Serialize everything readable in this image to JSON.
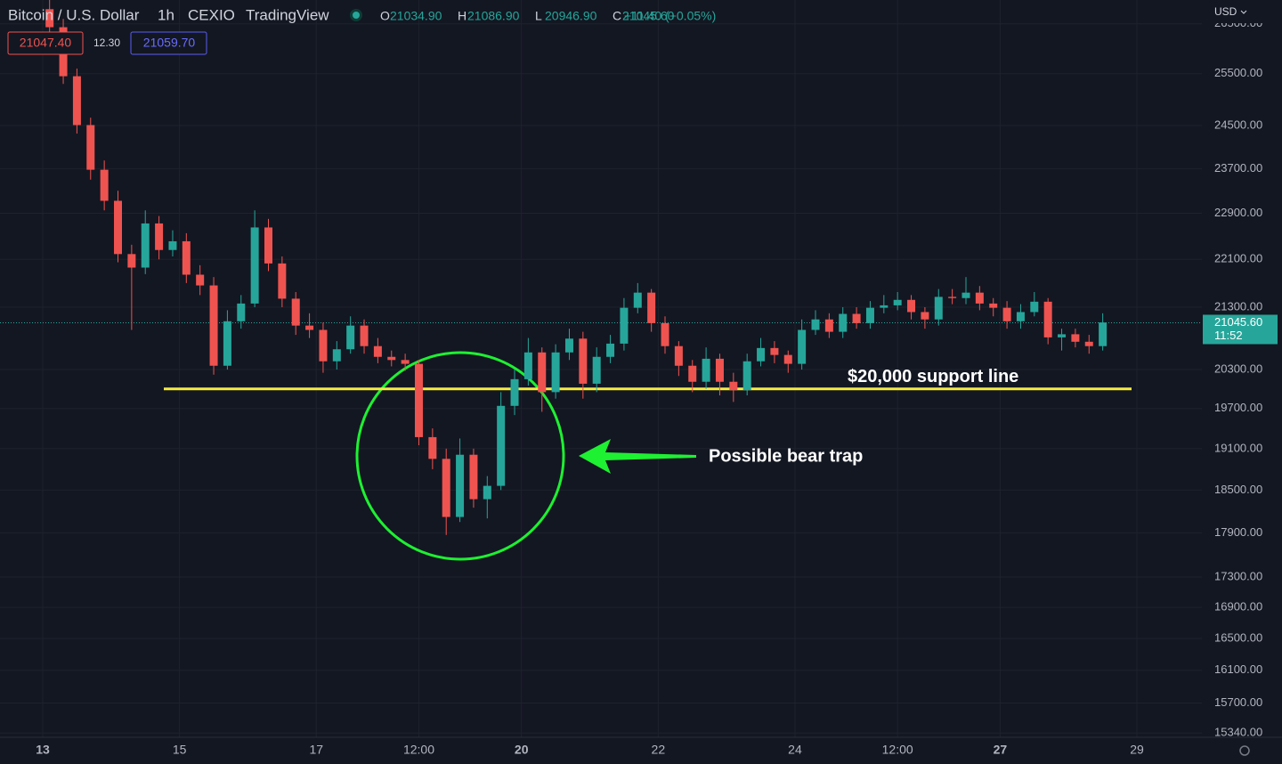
{
  "header": {
    "symbol": "Bitcoin / U.S. Dollar",
    "interval": "1h",
    "exchange": "CEXIO",
    "source": "TradingView",
    "ohlc": [
      {
        "label": "O",
        "value": "21034.90"
      },
      {
        "label": "H",
        "value": "21086.90"
      },
      {
        "label": "L",
        "value": "20946.90"
      },
      {
        "label": "C",
        "value": "21045.60"
      }
    ],
    "change": "+11.40 (+0.05%)",
    "bid": "21047.40",
    "spread": "12.30",
    "ask": "21059.70"
  },
  "currency": "USD",
  "chart_data": {
    "type": "candlestick",
    "x": [
      13.1,
      13.3,
      13.5,
      13.7,
      13.9,
      14.1,
      14.3,
      14.5,
      14.7,
      14.9,
      15.1,
      15.3,
      15.5,
      15.7,
      15.9,
      16.1,
      16.3,
      16.5,
      16.7,
      16.9,
      17.1,
      17.3,
      17.5,
      17.7,
      17.9,
      18.1,
      18.3,
      18.5,
      18.7,
      18.9,
      19.1,
      19.3,
      19.5,
      19.7,
      19.9,
      20.1,
      20.3,
      20.5,
      20.7,
      20.9,
      21.1,
      21.3,
      21.5,
      21.7,
      21.9,
      22.1,
      22.3,
      22.5,
      22.7,
      22.9,
      23.1,
      23.3,
      23.5,
      23.7,
      23.9,
      24.1,
      24.3,
      24.5,
      24.7,
      24.9,
      25.1,
      25.3,
      25.5,
      25.7,
      25.9,
      26.1,
      26.3,
      26.5,
      26.7,
      26.9,
      27.1,
      27.3,
      27.5,
      27.7,
      27.9,
      28.1,
      28.3,
      28.5
    ],
    "open": [
      26800,
      26430,
      25450,
      24510,
      23680,
      23120,
      22190,
      21960,
      22720,
      22260,
      22410,
      21840,
      21660,
      20360,
      21070,
      21360,
      22650,
      22030,
      21440,
      21000,
      20930,
      20430,
      20620,
      21000,
      20670,
      20500,
      20450,
      20390,
      19270,
      18950,
      18120,
      19010,
      18370,
      18560,
      19740,
      20150,
      20570,
      19950,
      20570,
      20790,
      20080,
      20500,
      20710,
      21290,
      21540,
      21040,
      20670,
      20360,
      20110,
      20470,
      20110,
      19980,
      20430,
      20640,
      20530,
      20390,
      20930,
      21100,
      20900,
      21190,
      21040,
      21290,
      21330,
      21420,
      21220,
      21100,
      21470,
      21450,
      21540,
      21360,
      21290,
      21070,
      21220,
      21390,
      20810,
      20860,
      20740,
      20670
    ],
    "high": [
      27000,
      26600,
      25600,
      24650,
      23850,
      23300,
      22350,
      22950,
      22850,
      22600,
      22550,
      22000,
      21800,
      21250,
      21500,
      22950,
      22800,
      22150,
      21550,
      21200,
      21050,
      20750,
      21150,
      21100,
      20800,
      20600,
      20550,
      20450,
      19400,
      19100,
      19250,
      19100,
      18700,
      19950,
      20300,
      20800,
      20650,
      20700,
      20950,
      20900,
      20650,
      20850,
      21450,
      21700,
      21600,
      21150,
      20750,
      20450,
      20650,
      20550,
      20250,
      20550,
      20800,
      20750,
      20600,
      21100,
      21250,
      21200,
      21300,
      21300,
      21400,
      21500,
      21550,
      21500,
      21300,
      21600,
      21600,
      21800,
      21650,
      21450,
      21400,
      21350,
      21550,
      21450,
      20950,
      20950,
      20850,
      21200
    ],
    "low": [
      26300,
      25300,
      24350,
      23500,
      22950,
      22050,
      20930,
      21850,
      22100,
      22150,
      21700,
      21500,
      20220,
      20300,
      20950,
      21300,
      21900,
      21300,
      20850,
      20800,
      20250,
      20300,
      20550,
      20550,
      20400,
      20350,
      20280,
      19150,
      18800,
      17870,
      18050,
      18250,
      18100,
      18500,
      19600,
      20050,
      19650,
      19850,
      20450,
      19850,
      19950,
      20400,
      20600,
      21200,
      20900,
      20550,
      20200,
      19950,
      20000,
      19900,
      19800,
      19900,
      20350,
      20400,
      20250,
      20300,
      20850,
      20800,
      20800,
      20950,
      20950,
      21200,
      21250,
      21100,
      20950,
      21000,
      21350,
      21350,
      21250,
      21150,
      20950,
      20950,
      21150,
      20700,
      20600,
      20650,
      20550,
      20600
    ],
    "close": [
      26430,
      25450,
      24510,
      23680,
      23120,
      22190,
      21960,
      22720,
      22260,
      22410,
      21840,
      21660,
      20360,
      21070,
      21360,
      22650,
      22030,
      21440,
      21000,
      20930,
      20430,
      20620,
      21000,
      20670,
      20500,
      20450,
      20390,
      19270,
      18950,
      18120,
      19010,
      18370,
      18560,
      19740,
      20150,
      20570,
      19950,
      20570,
      20790,
      20080,
      20500,
      20710,
      21290,
      21540,
      21040,
      20670,
      20360,
      20110,
      20470,
      20110,
      19980,
      20430,
      20640,
      20530,
      20390,
      20930,
      21100,
      20900,
      21190,
      21040,
      21290,
      21330,
      21420,
      21220,
      21100,
      21470,
      21450,
      21540,
      21360,
      21290,
      21070,
      21220,
      21390,
      20810,
      20860,
      20740,
      20670,
      21050
    ],
    "up_color": "#26a69a",
    "down_color": "#ef5350",
    "log_scale": true,
    "grid": true,
    "ylim": [
      15290,
      26990
    ],
    "yticks": [
      {
        "value": 26500,
        "label": "26500.00"
      },
      {
        "value": 25500,
        "label": "25500.00"
      },
      {
        "value": 24500,
        "label": "24500.00"
      },
      {
        "value": 23700,
        "label": "23700.00"
      },
      {
        "value": 22900,
        "label": "22900.00"
      },
      {
        "value": 22100,
        "label": "22100.00"
      },
      {
        "value": 21300,
        "label": "21300.00"
      },
      {
        "value": 20300,
        "label": "20300.00"
      },
      {
        "value": 19700,
        "label": "19700.00"
      },
      {
        "value": 19100,
        "label": "19100.00"
      },
      {
        "value": 18500,
        "label": "18500.00"
      },
      {
        "value": 17900,
        "label": "17900.00"
      },
      {
        "value": 17300,
        "label": "17300.00"
      },
      {
        "value": 16900,
        "label": "16900.00"
      },
      {
        "value": 16500,
        "label": "16500.00"
      },
      {
        "value": 16100,
        "label": "16100.00"
      },
      {
        "value": 15700,
        "label": "15700.00"
      },
      {
        "value": 15340,
        "label": "15340.00"
      }
    ],
    "xlim": [
      12.375,
      29.95
    ],
    "xticks": [
      13,
      15,
      17,
      {
        "value": 18.5,
        "label": "12:00"
      },
      20,
      22,
      24,
      {
        "value": 25.5,
        "label": "12:00"
      },
      27,
      29
    ],
    "last_price": {
      "value": 21045.6,
      "label": "21045.60",
      "countdown": "11:52"
    },
    "annotations": [
      {
        "text": "$20,000 support line",
        "value": 20000,
        "color": "#f5ec42"
      },
      {
        "text": "Possible bear trap",
        "color": "#1ef032"
      }
    ]
  }
}
